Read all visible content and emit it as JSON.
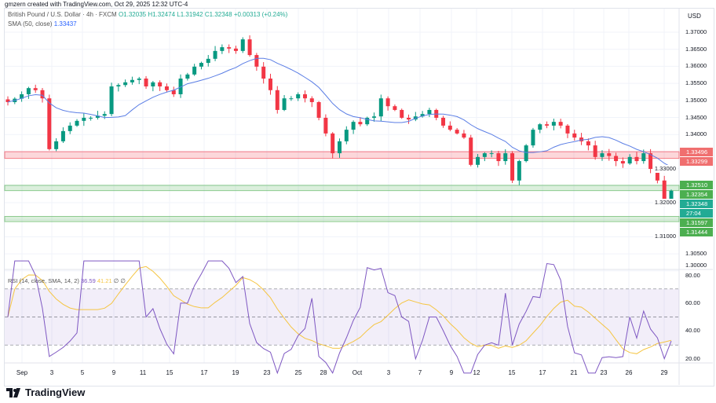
{
  "credit": "gmzern created with TradingView.com, Oct 29, 2025 12:32 UTC-4",
  "legend": {
    "symbol": "British Pound / U.S. Dollar · 4h · FXCM",
    "o": "O1.32035",
    "h": "H1.32474",
    "l": "L1.31942",
    "c": "C1.32348",
    "chg": "+0.00313 (+0.24%)",
    "sma_label": "SMA (50, close)",
    "sma_value": "1.33437"
  },
  "rsi_legend": {
    "label": "RSI (14, close, SMA, 14, 2)",
    "rsi": "36.59",
    "ma": "41.21",
    "extra": "∅ ∅"
  },
  "currency": "USD",
  "price_ticks": [
    "1.37000",
    "1.36500",
    "1.36000",
    "1.35500",
    "1.35000",
    "1.34500",
    "1.34000",
    "1.33000",
    "1.32000",
    "1.31000",
    "1.30500",
    "1.30000"
  ],
  "rsi_ticks": [
    "80.00",
    "60.00",
    "40.00",
    "20.00"
  ],
  "price_labels": [
    {
      "text": "1.33496",
      "color": "#f06f6f"
    },
    {
      "text": "1.33299",
      "color": "#f06f6f"
    },
    {
      "text": "1.32510",
      "color": "#4caf50"
    },
    {
      "text": "1.32354",
      "color": "#4caf50"
    },
    {
      "text": "1.32348",
      "color": "#22ab94"
    },
    {
      "text": "27:04",
      "color": "#22ab94"
    },
    {
      "text": "1.31597",
      "color": "#4caf50"
    },
    {
      "text": "1.31444",
      "color": "#4caf50"
    }
  ],
  "x_labels": [
    "Sep",
    "3",
    "5",
    "9",
    "11",
    "15",
    "17",
    "19",
    "23",
    "25",
    "28",
    "Oct",
    "3",
    "7",
    "9",
    "12",
    "15",
    "17",
    "21",
    "23",
    "26",
    "29"
  ],
  "brand": "TradingView",
  "chart_data": {
    "type": "candlestick",
    "title": "British Pound / U.S. Dollar · 4h · FXCM",
    "ylim": [
      1.3,
      1.372
    ],
    "zones": [
      {
        "from": 1.33299,
        "to": 1.33496,
        "color": "#f23645"
      },
      {
        "from": 1.32354,
        "to": 1.3251,
        "color": "#4caf50"
      },
      {
        "from": 1.31444,
        "to": 1.31597,
        "color": "#4caf50"
      }
    ],
    "closes": [
      1.3495,
      1.3505,
      1.3518,
      1.3536,
      1.353,
      1.3506,
      1.3357,
      1.338,
      1.341,
      1.3426,
      1.344,
      1.3449,
      1.3449,
      1.3455,
      1.346,
      1.3541,
      1.3545,
      1.3553,
      1.356,
      1.3564,
      1.3541,
      1.3553,
      1.3541,
      1.353,
      1.3518,
      1.3564,
      1.3576,
      1.3599,
      1.361,
      1.3622,
      1.3645,
      1.3656,
      1.3652,
      1.3645,
      1.3679,
      1.3633,
      1.3599,
      1.3564,
      1.353,
      1.3472,
      1.3506,
      1.3506,
      1.3518,
      1.3506,
      1.3495,
      1.3449,
      1.3403,
      1.3345,
      1.338,
      1.3414,
      1.3437,
      1.343,
      1.3449,
      1.3453,
      1.3506,
      1.3483,
      1.3472,
      1.3449,
      1.3444,
      1.3453,
      1.346,
      1.3472,
      1.3449,
      1.3426,
      1.3414,
      1.3403,
      1.3391,
      1.3311,
      1.3334,
      1.3345,
      1.3345,
      1.3322,
      1.3345,
      1.3265,
      1.3322,
      1.3368,
      1.3414,
      1.343,
      1.3426,
      1.3437,
      1.3426,
      1.3403,
      1.3391,
      1.338,
      1.3368,
      1.3334,
      1.3345,
      1.3337,
      1.3322,
      1.3315,
      1.3334,
      1.3322,
      1.3345,
      1.3299,
      1.3265,
      1.32,
      1.3235
    ],
    "rsi_bands": [
      70,
      50,
      30
    ],
    "rsi_ylim": [
      15,
      85
    ]
  }
}
